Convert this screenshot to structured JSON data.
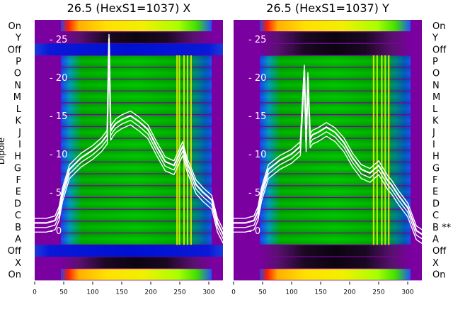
{
  "chart_data": [
    {
      "type": "heatmap",
      "title": "26.5 (HexS1=1037) X",
      "ylabel": "Dipole",
      "row_labels": [
        "On",
        "Y",
        "Off",
        "P",
        "O",
        "N",
        "M",
        "L",
        "K",
        "J",
        "I",
        "H",
        "G",
        "F",
        "E",
        "D",
        "C",
        "B",
        "A",
        "Off",
        "X",
        "On"
      ],
      "x_ticks": [
        0,
        50,
        100,
        150,
        200,
        250,
        300
      ],
      "xlim": [
        0,
        330
      ],
      "overlay_ticks": [
        0,
        5,
        10,
        15,
        20,
        25
      ],
      "overlay_ylim": [
        -6.5,
        27.5
      ],
      "overlay_curve": {
        "x": [
          0,
          20,
          35,
          42,
          48,
          60,
          80,
          100,
          115,
          125,
          128,
          131,
          135,
          140,
          150,
          165,
          180,
          195,
          210,
          225,
          240,
          255,
          262,
          270,
          278,
          290,
          305,
          315,
          325,
          330
        ],
        "y": [
          1,
          1,
          1.3,
          2.5,
          5,
          8,
          9.5,
          10.5,
          11.5,
          12.5,
          25,
          13,
          13.5,
          14,
          14.5,
          15,
          14.2,
          13.2,
          11,
          9,
          8.5,
          11,
          9,
          7.5,
          6,
          5,
          4,
          1,
          -0.5,
          -0.5
        ]
      }
    },
    {
      "type": "heatmap",
      "title": "26.5 (HexS1=1037) Y",
      "row_labels": [
        "On",
        "Y",
        "Off",
        "P",
        "O",
        "N",
        "M",
        "L",
        "K",
        "J",
        "I",
        "H",
        "G",
        "F",
        "E",
        "D",
        "C",
        "B **",
        "A",
        "Off",
        "X",
        "On"
      ],
      "x_ticks": [
        0,
        50,
        100,
        150,
        200,
        250,
        300
      ],
      "xlim": [
        0,
        330
      ],
      "overlay_ticks": [
        0,
        5,
        10,
        15,
        20,
        25
      ],
      "overlay_ylim": [
        -6.5,
        27.5
      ],
      "overlay_curve": {
        "x": [
          0,
          20,
          35,
          42,
          48,
          60,
          80,
          100,
          115,
          122,
          125,
          128,
          132,
          136,
          145,
          160,
          175,
          190,
          205,
          220,
          235,
          250,
          258,
          266,
          272,
          285,
          300,
          315,
          325,
          330
        ],
        "y": [
          1,
          1,
          1.3,
          2.5,
          5,
          8,
          9.2,
          10,
          11,
          21,
          11.5,
          20,
          12,
          12.5,
          12.8,
          13.5,
          12.8,
          11.5,
          9.5,
          8,
          7.5,
          8.5,
          7.5,
          6.5,
          6,
          4.5,
          3,
          0,
          -0.5,
          -0.5
        ]
      }
    }
  ],
  "colors": {
    "frame": "#7a00a0",
    "blue_band": "#0014d8",
    "dark_band": "#3a0a48",
    "curve": "#ffffff"
  }
}
